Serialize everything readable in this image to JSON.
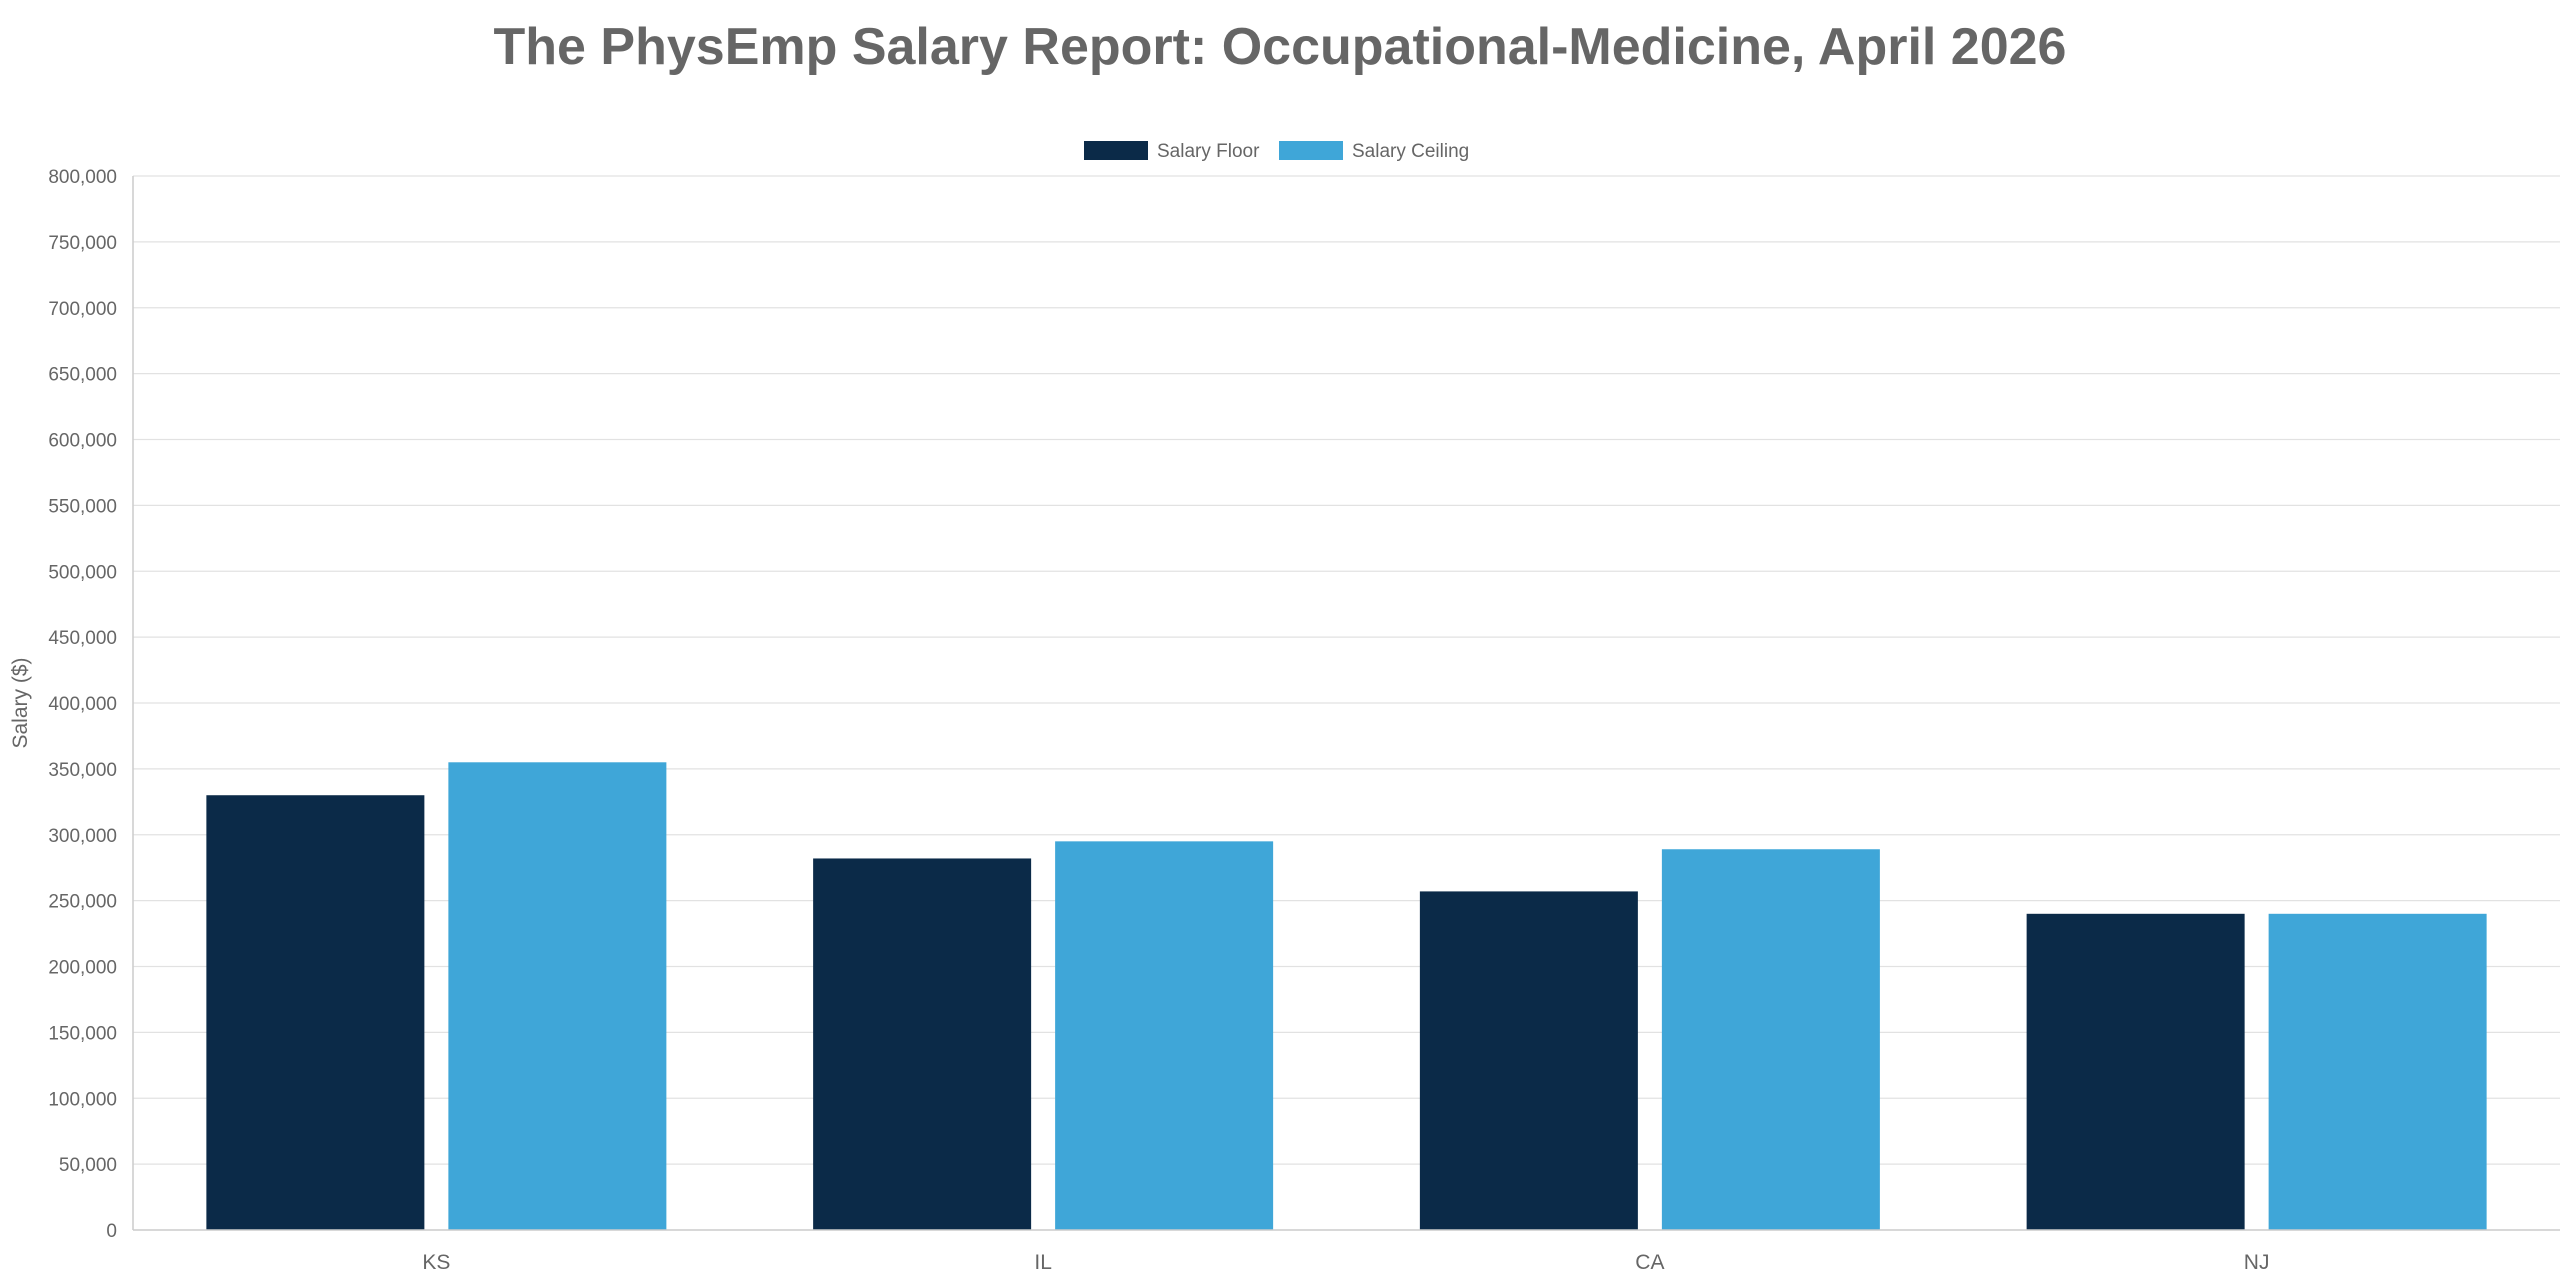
{
  "chart_data": {
    "type": "bar",
    "title": "The PhysEmp Salary Report: Occupational-Medicine, April 2026",
    "xlabel": "",
    "ylabel": "Salary ($)",
    "categories": [
      "KS",
      "IL",
      "CA",
      "NJ"
    ],
    "series": [
      {
        "name": "Salary Floor",
        "color": "#0b2a48",
        "values": [
          330000,
          282000,
          257000,
          240000
        ]
      },
      {
        "name": "Salary Ceiling",
        "color": "#3fa6d8",
        "values": [
          355000,
          295000,
          289000,
          240000
        ]
      }
    ],
    "ylim": [
      0,
      800000
    ],
    "yticks": [
      0,
      50000,
      100000,
      150000,
      200000,
      250000,
      300000,
      350000,
      400000,
      450000,
      500000,
      550000,
      600000,
      650000,
      700000,
      750000,
      800000
    ],
    "ytick_labels": [
      "0",
      "50,000",
      "100,000",
      "150,000",
      "200,000",
      "250,000",
      "300,000",
      "350,000",
      "400,000",
      "450,000",
      "500,000",
      "550,000",
      "600,000",
      "650,000",
      "700,000",
      "750,000",
      "800,000"
    ],
    "grid": true,
    "legend_position": "top-center"
  }
}
